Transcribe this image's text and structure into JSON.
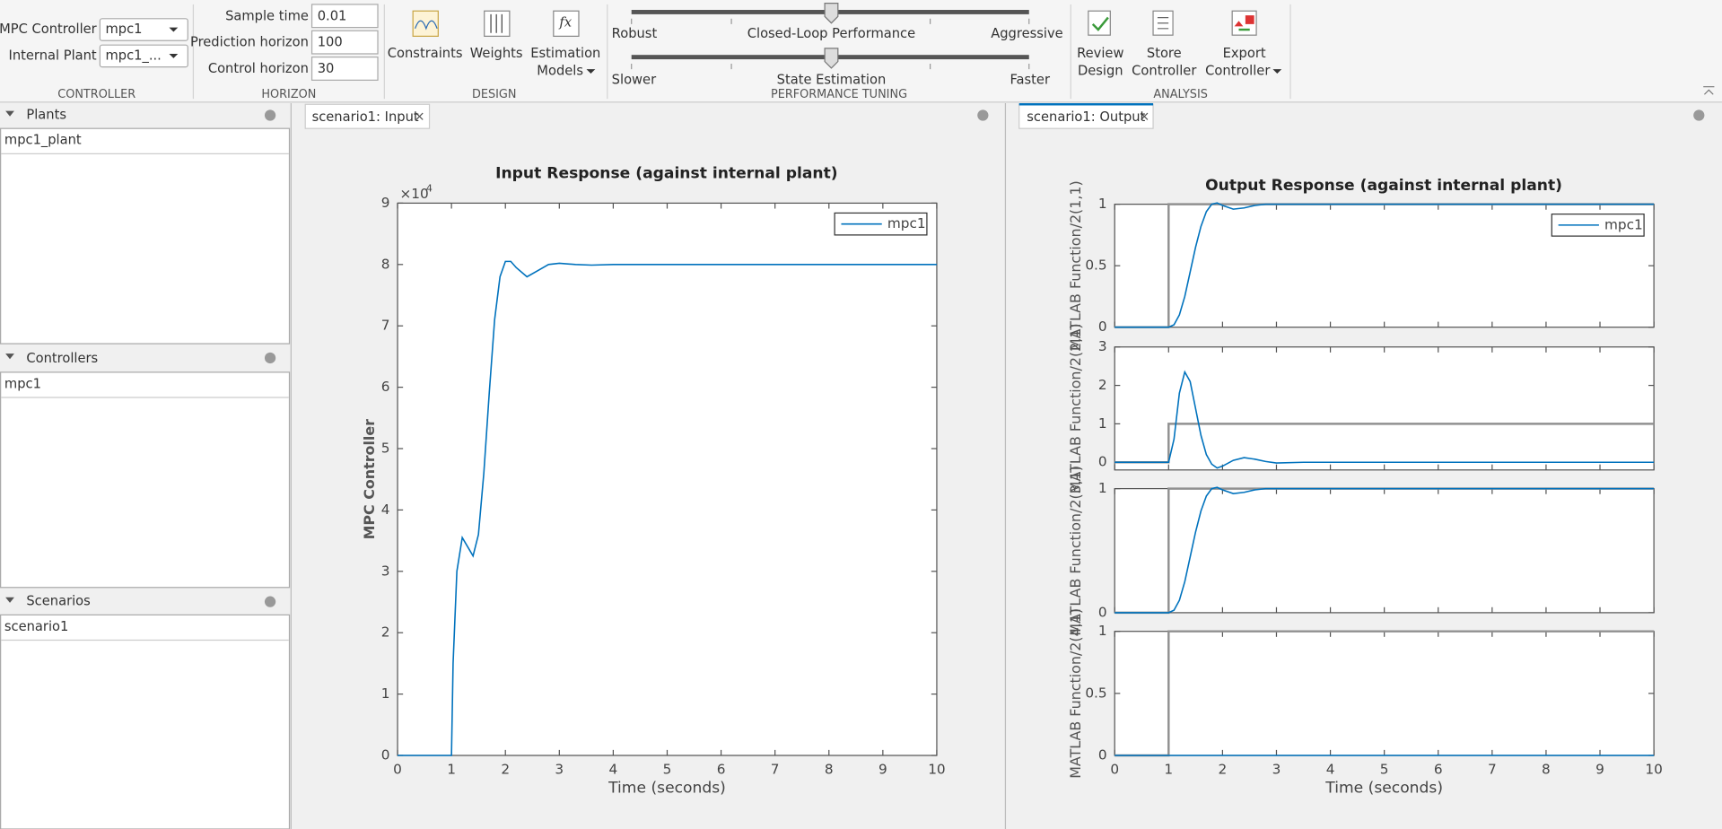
{
  "toolstrip": {
    "controller": {
      "mpc_controller_label": "MPC Controller",
      "mpc_controller_value": "mpc1",
      "internal_plant_label": "Internal Plant",
      "internal_plant_value": "mpc1_...",
      "section": "CONTROLLER"
    },
    "horizon": {
      "sample_time_label": "Sample time",
      "sample_time": "0.01",
      "prediction_horizon_label": "Prediction horizon",
      "prediction_horizon": "100",
      "control_horizon_label": "Control horizon",
      "control_horizon": "30",
      "section": "HORIZON"
    },
    "design": {
      "buttons": [
        [
          "Constraints"
        ],
        [
          "Weights"
        ],
        [
          "Estimation",
          "Models"
        ]
      ],
      "section": "DESIGN"
    },
    "performance_tuning": {
      "slider1": {
        "left": "Robust",
        "center": "Closed-Loop Performance",
        "right": "Aggressive"
      },
      "slider2": {
        "left": "Slower",
        "center": "State Estimation",
        "right": "Faster"
      },
      "section": "PERFORMANCE TUNING"
    },
    "analysis": {
      "buttons": [
        [
          "Review",
          "Design"
        ],
        [
          "Store",
          "Controller"
        ],
        [
          "Export",
          "Controller"
        ]
      ],
      "section": "ANALYSIS"
    }
  },
  "browser": {
    "panels": [
      {
        "title": "Plants",
        "items": [
          "mpc1_plant"
        ]
      },
      {
        "title": "Controllers",
        "items": [
          "mpc1"
        ]
      },
      {
        "title": "Scenarios",
        "items": [
          "scenario1"
        ]
      }
    ]
  },
  "tabs": [
    "scenario1: Input",
    "scenario1: Output"
  ],
  "chart_data": [
    {
      "type": "line",
      "title": "Input Response (against internal plant)",
      "xlabel": "Time (seconds)",
      "ylabel": "MPC Controller",
      "y_multiplier": {
        "base": "×10",
        "exponent": "4"
      },
      "xlim": [
        0,
        10
      ],
      "xticks": [
        0,
        1,
        2,
        3,
        4,
        5,
        6,
        7,
        8,
        9,
        10
      ],
      "ylim": [
        0,
        9
      ],
      "yticks": [
        0,
        1,
        2,
        3,
        4,
        5,
        6,
        7,
        8,
        9
      ],
      "legend": "upper right",
      "series": [
        {
          "name": "mpc1",
          "color": "#0072bd",
          "x": [
            0,
            1,
            1.03,
            1.1,
            1.2,
            1.3,
            1.4,
            1.5,
            1.6,
            1.7,
            1.8,
            1.9,
            2.0,
            2.1,
            2.2,
            2.4,
            2.6,
            2.8,
            3.0,
            3.3,
            3.6,
            4,
            5,
            6,
            7,
            8,
            9,
            10
          ],
          "values": [
            0,
            0,
            1.5,
            3.0,
            3.55,
            3.4,
            3.25,
            3.6,
            4.6,
            5.9,
            7.1,
            7.8,
            8.05,
            8.05,
            7.95,
            7.8,
            7.9,
            8.0,
            8.02,
            8.0,
            7.99,
            8,
            8,
            8,
            8,
            8,
            8,
            8
          ]
        }
      ]
    },
    {
      "type": "line",
      "title": "Output Response (against internal plant)",
      "xlabel": "Time (seconds)",
      "xlim": [
        0,
        10
      ],
      "xticks": [
        0,
        1,
        2,
        3,
        4,
        5,
        6,
        7,
        8,
        9,
        10
      ],
      "legend": "upper right",
      "subplots": [
        {
          "ylabel": "MATLAB Function/2(1,1)",
          "ylim": [
            0,
            1
          ],
          "yticks": [
            0,
            0.5,
            1
          ],
          "series": [
            {
              "color": "#909090",
              "x": [
                0,
                1,
                1,
                10
              ],
              "values": [
                0,
                0,
                1,
                1
              ]
            },
            {
              "name": "mpc1",
              "color": "#0072bd",
              "x": [
                0,
                1,
                1.1,
                1.2,
                1.3,
                1.4,
                1.5,
                1.6,
                1.7,
                1.8,
                1.9,
                2.0,
                2.2,
                2.4,
                2.6,
                2.8,
                3,
                4,
                10
              ],
              "values": [
                0,
                0,
                0.02,
                0.1,
                0.25,
                0.45,
                0.65,
                0.82,
                0.94,
                1.0,
                1.01,
                0.99,
                0.96,
                0.97,
                0.99,
                1.0,
                1.0,
                1.0,
                1.0
              ]
            }
          ]
        },
        {
          "ylabel": "MATLAB Function/2(2,1)",
          "ylim": [
            -0.2,
            3
          ],
          "yticks": [
            0,
            1,
            2,
            3
          ],
          "series": [
            {
              "color": "#909090",
              "x": [
                0,
                1,
                1,
                10
              ],
              "values": [
                0,
                0,
                1,
                1
              ]
            },
            {
              "name": "mpc1",
              "color": "#0072bd",
              "x": [
                0,
                1,
                1.1,
                1.2,
                1.3,
                1.4,
                1.5,
                1.6,
                1.7,
                1.8,
                1.9,
                2.0,
                2.2,
                2.4,
                2.6,
                2.8,
                3,
                3.5,
                4,
                10
              ],
              "values": [
                0,
                0,
                0.6,
                1.8,
                2.35,
                2.1,
                1.4,
                0.7,
                0.2,
                -0.05,
                -0.15,
                -0.1,
                0.05,
                0.12,
                0.08,
                0.02,
                -0.02,
                0,
                0,
                0
              ]
            }
          ]
        },
        {
          "ylabel": "MATLAB Function/2(3,1)",
          "ylim": [
            0,
            1
          ],
          "yticks": [
            0,
            1
          ],
          "series": [
            {
              "color": "#909090",
              "x": [
                0,
                1,
                1,
                10
              ],
              "values": [
                0,
                0,
                1,
                1
              ]
            },
            {
              "name": "mpc1",
              "color": "#0072bd",
              "x": [
                0,
                1,
                1.1,
                1.2,
                1.3,
                1.4,
                1.5,
                1.6,
                1.7,
                1.8,
                1.9,
                2.0,
                2.2,
                2.4,
                2.6,
                2.8,
                3,
                4,
                10
              ],
              "values": [
                0,
                0,
                0.02,
                0.1,
                0.25,
                0.45,
                0.65,
                0.82,
                0.94,
                1.0,
                1.01,
                0.99,
                0.96,
                0.97,
                0.99,
                1.0,
                1.0,
                1.0,
                1.0
              ]
            }
          ]
        },
        {
          "ylabel": "MATLAB Function/2(4,1)",
          "ylim": [
            0,
            1
          ],
          "yticks": [
            0,
            0.5,
            1
          ],
          "series": [
            {
              "color": "#909090",
              "x": [
                0,
                1,
                1,
                10
              ],
              "values": [
                0,
                0,
                1,
                1
              ]
            },
            {
              "name": "mpc1",
              "color": "#0072bd",
              "x": [
                0,
                10
              ],
              "values": [
                0,
                0
              ]
            }
          ]
        }
      ]
    }
  ]
}
